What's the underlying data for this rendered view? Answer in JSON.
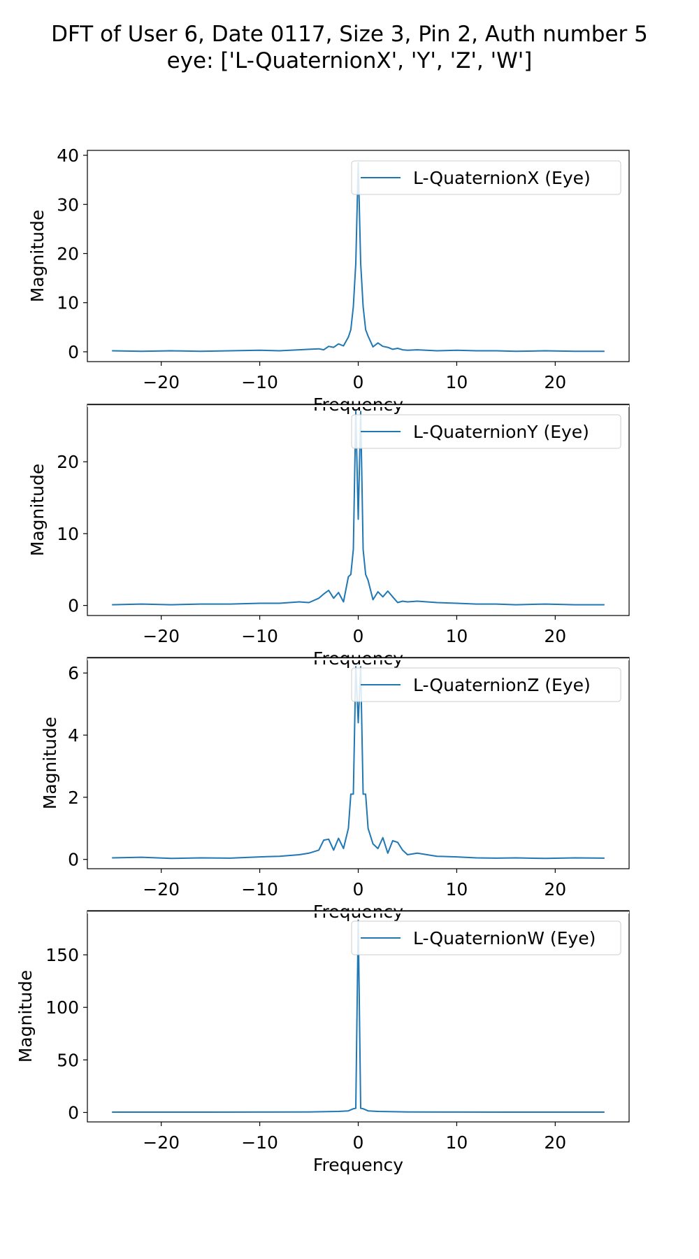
{
  "figure": {
    "title_line1": "DFT of User 6, Date 0117, Size 3, Pin 2, Auth number 5",
    "title_line2": "eye: ['L-QuaternionX', 'Y', 'Z', 'W']"
  },
  "chart_data": [
    {
      "type": "line",
      "title": "",
      "xlabel": "Frequency",
      "ylabel": "Magnitude",
      "xlim": [
        -27.5,
        27.5
      ],
      "ylim": [
        -2,
        41
      ],
      "xticks": [
        -20,
        -10,
        0,
        10,
        20
      ],
      "yticks": [
        0,
        10,
        20,
        30,
        40
      ],
      "grid": false,
      "legend_position": "top-right",
      "series": [
        {
          "name": "L-QuaternionX (Eye)",
          "color": "#1f77b4",
          "x": [
            -25,
            -22,
            -19,
            -16,
            -13,
            -10,
            -8,
            -6,
            -5,
            -4,
            -3.5,
            -3,
            -2.5,
            -2,
            -1.5,
            -1,
            -0.75,
            -0.5,
            -0.25,
            0,
            0.25,
            0.5,
            0.75,
            1,
            1.5,
            2,
            2.5,
            3,
            3.5,
            4,
            4.5,
            5,
            6,
            8,
            10,
            12,
            14,
            16,
            19,
            22,
            25
          ],
          "values": [
            0.2,
            0.1,
            0.2,
            0.1,
            0.2,
            0.3,
            0.2,
            0.4,
            0.5,
            0.6,
            0.4,
            1.1,
            0.9,
            1.6,
            1.2,
            3.0,
            4.5,
            9.2,
            18,
            38.5,
            18,
            9.2,
            4.5,
            3.2,
            1.0,
            1.8,
            1.1,
            0.9,
            0.5,
            0.7,
            0.4,
            0.3,
            0.4,
            0.2,
            0.3,
            0.2,
            0.2,
            0.1,
            0.2,
            0.1,
            0.1
          ]
        }
      ]
    },
    {
      "type": "line",
      "title": "",
      "xlabel": "Frequency",
      "ylabel": "Magnitude",
      "xlim": [
        -27.5,
        27.5
      ],
      "ylim": [
        -1.4,
        28
      ],
      "xticks": [
        -20,
        -10,
        0,
        10,
        20
      ],
      "yticks": [
        0,
        10,
        20
      ],
      "grid": false,
      "legend_position": "top-right",
      "series": [
        {
          "name": "L-QuaternionY (Eye)",
          "color": "#1f77b4",
          "x": [
            -25,
            -22,
            -19,
            -16,
            -13,
            -10,
            -8,
            -6,
            -5,
            -4,
            -3.5,
            -3,
            -2.5,
            -2,
            -1.5,
            -1,
            -0.75,
            -0.5,
            -0.25,
            0,
            0.25,
            0.5,
            0.75,
            1,
            1.5,
            2,
            2.5,
            3,
            3.5,
            4,
            4.5,
            5,
            6,
            8,
            10,
            12,
            14,
            16,
            19,
            22,
            25
          ],
          "values": [
            0.1,
            0.2,
            0.1,
            0.2,
            0.2,
            0.3,
            0.3,
            0.5,
            0.4,
            1.0,
            1.6,
            2.1,
            1.0,
            1.8,
            0.5,
            4.0,
            4.3,
            7.8,
            27,
            12,
            27,
            7.8,
            4.3,
            3.5,
            0.8,
            1.9,
            1.2,
            2.0,
            1.2,
            0.4,
            0.6,
            0.5,
            0.6,
            0.4,
            0.3,
            0.2,
            0.2,
            0.1,
            0.2,
            0.1,
            0.1
          ]
        }
      ]
    },
    {
      "type": "line",
      "title": "",
      "xlabel": "Frequency",
      "ylabel": "Magnitude",
      "xlim": [
        -27.5,
        27.5
      ],
      "ylim": [
        -0.3,
        6.5
      ],
      "xticks": [
        -20,
        -10,
        0,
        10,
        20
      ],
      "yticks": [
        0,
        2,
        4,
        6
      ],
      "grid": false,
      "legend_position": "top-right",
      "series": [
        {
          "name": "L-QuaternionZ (Eye)",
          "color": "#1f77b4",
          "x": [
            -25,
            -22,
            -19,
            -16,
            -13,
            -10,
            -8,
            -6,
            -5,
            -4,
            -3.5,
            -3,
            -2.5,
            -2,
            -1.5,
            -1,
            -0.75,
            -0.5,
            -0.25,
            0,
            0.25,
            0.5,
            0.75,
            1,
            1.5,
            2,
            2.5,
            3,
            3.5,
            4,
            4.5,
            5,
            6,
            8,
            10,
            12,
            14,
            16,
            19,
            22,
            25
          ],
          "values": [
            0.05,
            0.07,
            0.03,
            0.05,
            0.04,
            0.08,
            0.1,
            0.15,
            0.2,
            0.3,
            0.62,
            0.65,
            0.3,
            0.68,
            0.35,
            1.0,
            2.1,
            2.1,
            6.2,
            4.4,
            6.2,
            2.1,
            2.1,
            1.0,
            0.5,
            0.35,
            0.7,
            0.2,
            0.6,
            0.55,
            0.3,
            0.15,
            0.2,
            0.1,
            0.08,
            0.05,
            0.04,
            0.05,
            0.03,
            0.05,
            0.04
          ]
        }
      ]
    },
    {
      "type": "line",
      "title": "",
      "xlabel": "Frequency",
      "ylabel": "Magnitude",
      "xlim": [
        -27.5,
        27.5
      ],
      "ylim": [
        -9,
        192
      ],
      "xticks": [
        -20,
        -10,
        0,
        10,
        20
      ],
      "yticks": [
        0,
        50,
        100,
        150
      ],
      "grid": false,
      "legend_position": "top-right",
      "series": [
        {
          "name": "L-QuaternionW (Eye)",
          "color": "#1f77b4",
          "x": [
            -25,
            -20,
            -15,
            -10,
            -5,
            -3,
            -2,
            -1,
            -0.5,
            -0.25,
            0,
            0.25,
            0.5,
            1,
            2,
            3,
            5,
            10,
            15,
            20,
            25
          ],
          "values": [
            0.3,
            0.3,
            0.3,
            0.4,
            0.5,
            0.8,
            1.0,
            1.5,
            3.5,
            4.0,
            183,
            4.0,
            3.5,
            1.5,
            1.0,
            0.8,
            0.5,
            0.4,
            0.3,
            0.3,
            0.3
          ]
        }
      ]
    }
  ]
}
